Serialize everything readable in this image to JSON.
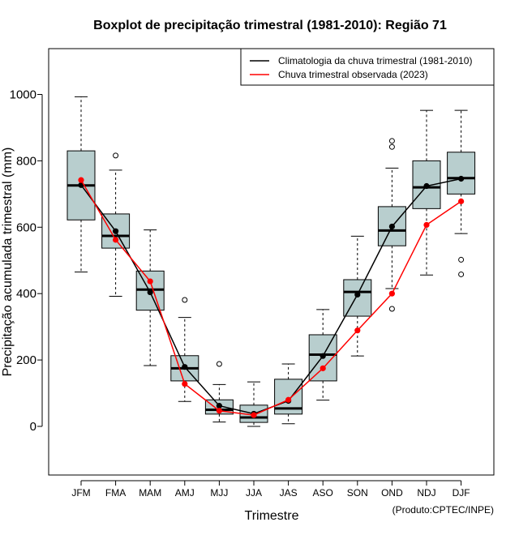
{
  "chart_data": {
    "type": "boxplot",
    "title": "Boxplot de precipitação trimestral (1981-2010): Região 71",
    "xlabel": "Trimestre",
    "ylabel": "Precipitação acumulada trimestral (mm)",
    "ylim": [
      -150,
      1140
    ],
    "yticks": [
      0,
      200,
      400,
      600,
      800,
      1000
    ],
    "credit": "(Produto:CPTEC/INPE)",
    "legend_position": "top-right",
    "categories": [
      "JFM",
      "FMA",
      "MAM",
      "AMJ",
      "MJJ",
      "JJA",
      "JAS",
      "ASO",
      "SON",
      "OND",
      "NDJ",
      "DJF"
    ],
    "boxes": [
      {
        "min": 465,
        "q1": 622,
        "median": 726,
        "q3": 830,
        "max": 993,
        "outliers": []
      },
      {
        "min": 392,
        "q1": 537,
        "median": 574,
        "q3": 640,
        "max": 772,
        "outliers": [
          816
        ]
      },
      {
        "min": 183,
        "q1": 350,
        "median": 412,
        "q3": 468,
        "max": 592,
        "outliers": []
      },
      {
        "min": 75,
        "q1": 137,
        "median": 175,
        "q3": 213,
        "max": 328,
        "outliers": [
          381
        ]
      },
      {
        "min": 13,
        "q1": 37,
        "median": 50,
        "q3": 80,
        "max": 126,
        "outliers": [
          188
        ]
      },
      {
        "min": 0,
        "q1": 12,
        "median": 27,
        "q3": 64,
        "max": 134,
        "outliers": []
      },
      {
        "min": 8,
        "q1": 37,
        "median": 54,
        "q3": 142,
        "max": 188,
        "outliers": []
      },
      {
        "min": 79,
        "q1": 137,
        "median": 216,
        "q3": 276,
        "max": 352,
        "outliers": []
      },
      {
        "min": 212,
        "q1": 332,
        "median": 405,
        "q3": 442,
        "max": 573,
        "outliers": []
      },
      {
        "min": 415,
        "q1": 544,
        "median": 590,
        "q3": 662,
        "max": 778,
        "outliers": [
          354,
          842,
          860
        ]
      },
      {
        "min": 456,
        "q1": 656,
        "median": 720,
        "q3": 800,
        "max": 952,
        "outliers": []
      },
      {
        "min": 581,
        "q1": 700,
        "median": 748,
        "q3": 826,
        "max": 952,
        "outliers": [
          458,
          502
        ]
      }
    ],
    "series": [
      {
        "name": "Climatologia da chuva trimestral (1981-2010)",
        "color": "#000000",
        "values": [
          727,
          588,
          404,
          179,
          62,
          38,
          77,
          212,
          397,
          602,
          724,
          746
        ]
      },
      {
        "name": "Chuva trimestral observada (2023)",
        "color": "#ff0000",
        "values": [
          742,
          562,
          437,
          128,
          47,
          34,
          80,
          175,
          289,
          400,
          607,
          678
        ]
      }
    ],
    "box_fill": "#b8cece"
  }
}
